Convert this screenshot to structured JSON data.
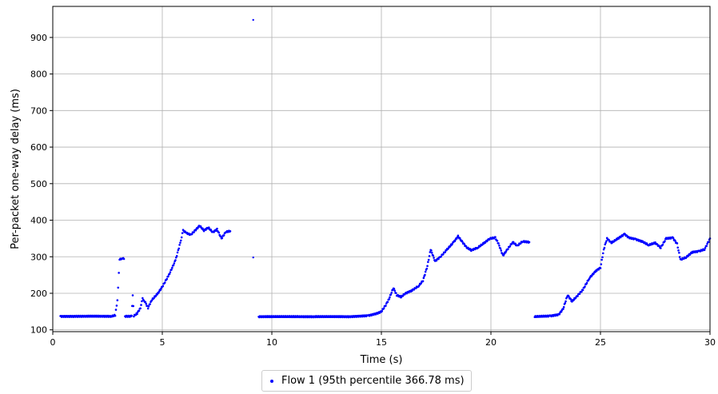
{
  "chart_data": {
    "type": "scatter",
    "xlabel": "Time (s)",
    "ylabel": "Per-packet one-way delay (ms)",
    "xlim": [
      0,
      30
    ],
    "ylim": [
      95,
      985
    ],
    "xticks": [
      0,
      5,
      10,
      15,
      20,
      25,
      30
    ],
    "yticks": [
      100,
      200,
      300,
      400,
      500,
      600,
      700,
      800,
      900
    ],
    "grid": true,
    "legend_position": "bottom-center",
    "series": [
      {
        "name": "Flow 1 (95th percentile 366.78 ms)",
        "color": "#0000ff",
        "segments": [
          [
            [
              0.35,
              137
            ],
            [
              2.7,
              137
            ],
            [
              2.85,
              140
            ],
            [
              2.95,
              180
            ],
            [
              3.05,
              292
            ],
            [
              3.15,
              296
            ],
            [
              3.25,
              294
            ]
          ],
          [
            [
              3.3,
              137
            ],
            [
              3.6,
              137
            ],
            [
              3.65,
              195
            ],
            [
              3.7,
              138
            ],
            [
              3.85,
              145
            ],
            [
              4.0,
              160
            ],
            [
              4.1,
              185
            ],
            [
              4.2,
              178
            ],
            [
              4.35,
              160
            ],
            [
              4.5,
              180
            ],
            [
              4.8,
              200
            ],
            [
              5.0,
              218
            ],
            [
              5.3,
              250
            ],
            [
              5.6,
              290
            ],
            [
              5.85,
              345
            ],
            [
              5.95,
              372
            ],
            [
              6.1,
              365
            ],
            [
              6.3,
              360
            ],
            [
              6.5,
              372
            ],
            [
              6.7,
              385
            ],
            [
              6.9,
              372
            ],
            [
              7.1,
              380
            ],
            [
              7.3,
              367
            ],
            [
              7.5,
              375
            ],
            [
              7.7,
              350
            ],
            [
              7.9,
              368
            ],
            [
              8.1,
              370
            ]
          ],
          [
            [
              9.15,
              948
            ]
          ],
          [
            [
              9.15,
              298
            ]
          ],
          [
            [
              9.4,
              136
            ],
            [
              12.0,
              136
            ],
            [
              13.5,
              136
            ],
            [
              14.4,
              139
            ],
            [
              14.8,
              145
            ],
            [
              15.0,
              150
            ],
            [
              15.2,
              168
            ],
            [
              15.35,
              185
            ],
            [
              15.55,
              215
            ],
            [
              15.7,
              195
            ],
            [
              15.9,
              190
            ],
            [
              16.1,
              200
            ],
            [
              16.4,
              208
            ],
            [
              16.7,
              220
            ],
            [
              16.9,
              235
            ],
            [
              17.1,
              275
            ],
            [
              17.25,
              320
            ],
            [
              17.45,
              288
            ],
            [
              17.7,
              300
            ],
            [
              18.0,
              320
            ],
            [
              18.3,
              340
            ],
            [
              18.5,
              356
            ],
            [
              18.7,
              340
            ],
            [
              18.9,
              325
            ],
            [
              19.1,
              318
            ],
            [
              19.4,
              325
            ],
            [
              19.7,
              338
            ],
            [
              19.95,
              350
            ],
            [
              20.2,
              352
            ],
            [
              20.35,
              335
            ],
            [
              20.55,
              303
            ],
            [
              20.75,
              320
            ],
            [
              21.0,
              340
            ],
            [
              21.2,
              330
            ],
            [
              21.45,
              342
            ],
            [
              21.75,
              340
            ]
          ],
          [
            [
              22.0,
              136
            ],
            [
              22.7,
              138
            ],
            [
              23.1,
              142
            ],
            [
              23.3,
              158
            ],
            [
              23.5,
              195
            ],
            [
              23.7,
              178
            ],
            [
              23.9,
              190
            ],
            [
              24.2,
              210
            ],
            [
              24.5,
              242
            ],
            [
              24.8,
              262
            ],
            [
              25.0,
              270
            ],
            [
              25.15,
              320
            ],
            [
              25.3,
              350
            ],
            [
              25.5,
              338
            ],
            [
              25.8,
              350
            ],
            [
              26.1,
              362
            ],
            [
              26.3,
              352
            ],
            [
              26.6,
              348
            ],
            [
              26.9,
              342
            ],
            [
              27.2,
              332
            ],
            [
              27.5,
              338
            ],
            [
              27.75,
              325
            ],
            [
              28.0,
              350
            ],
            [
              28.3,
              352
            ],
            [
              28.5,
              335
            ],
            [
              28.65,
              292
            ],
            [
              28.9,
              298
            ],
            [
              29.2,
              313
            ],
            [
              29.5,
              315
            ],
            [
              29.75,
              320
            ],
            [
              30.0,
              350
            ]
          ]
        ]
      }
    ]
  }
}
